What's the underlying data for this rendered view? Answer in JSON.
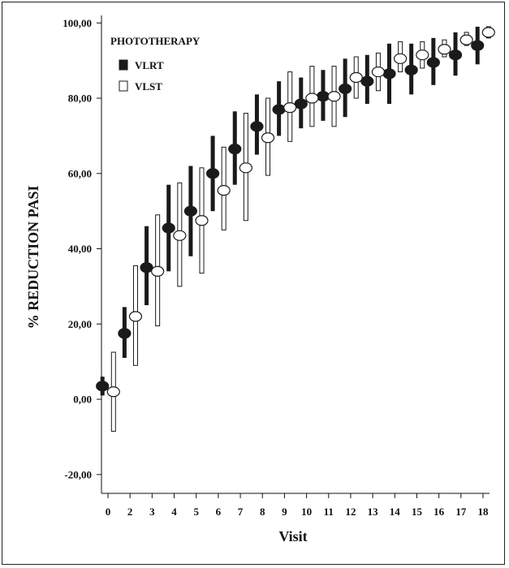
{
  "chart_data": {
    "type": "scatter",
    "xlabel": "Visit",
    "ylabel": "% REDUCTION PASI",
    "ylim": [
      -25,
      102
    ],
    "y_ticks": [
      "-20,00",
      "0,00",
      "20,00",
      "40,00",
      "60,00",
      "80,00",
      "100,00"
    ],
    "y_tick_values": [
      -20,
      0,
      20,
      40,
      60,
      80,
      100
    ],
    "categories": [
      "0",
      "2",
      "3",
      "4",
      "5",
      "6",
      "7",
      "8",
      "9",
      "10",
      "11",
      "12",
      "13",
      "14",
      "15",
      "16",
      "17",
      "18"
    ],
    "legend": {
      "title": "PHOTOTHERAPY",
      "placement": "top-left"
    },
    "series": [
      {
        "name": "VLRT",
        "style": "filled",
        "mean": [
          3.5,
          17.5,
          35.0,
          45.5,
          50.0,
          60.0,
          66.5,
          72.5,
          77.0,
          78.5,
          80.5,
          82.5,
          84.5,
          86.5,
          87.5,
          89.5,
          91.5,
          94.0
        ],
        "lower": [
          1.0,
          11.0,
          25.0,
          34.0,
          38.0,
          50.0,
          57.0,
          65.0,
          70.0,
          72.0,
          74.0,
          75.0,
          78.5,
          78.5,
          81.0,
          83.5,
          86.0,
          89.0
        ],
        "upper": [
          6.0,
          24.5,
          46.0,
          57.0,
          62.0,
          70.0,
          76.5,
          81.0,
          84.5,
          85.5,
          87.5,
          90.5,
          91.5,
          94.5,
          94.5,
          96.0,
          97.5,
          99.0
        ]
      },
      {
        "name": "VLST",
        "style": "open",
        "mean": [
          2.0,
          22.0,
          34.0,
          43.5,
          47.5,
          55.5,
          61.5,
          69.5,
          77.5,
          80.0,
          80.5,
          85.5,
          87.0,
          90.5,
          91.5,
          93.0,
          95.5,
          97.5
        ],
        "lower": [
          -8.5,
          9.0,
          19.5,
          30.0,
          33.5,
          45.0,
          47.5,
          59.5,
          68.5,
          72.5,
          72.5,
          80.0,
          82.0,
          87.0,
          88.0,
          91.0,
          94.0,
          96.0
        ],
        "upper": [
          12.5,
          35.5,
          49.0,
          57.5,
          61.5,
          67.0,
          76.0,
          80.0,
          87.0,
          88.5,
          88.5,
          91.0,
          92.0,
          95.0,
          95.0,
          95.5,
          97.5,
          99.0
        ]
      }
    ],
    "colors": {
      "filled": "#1a1a1a",
      "open": "#ffffff",
      "stroke": "#1a1a1a"
    }
  }
}
